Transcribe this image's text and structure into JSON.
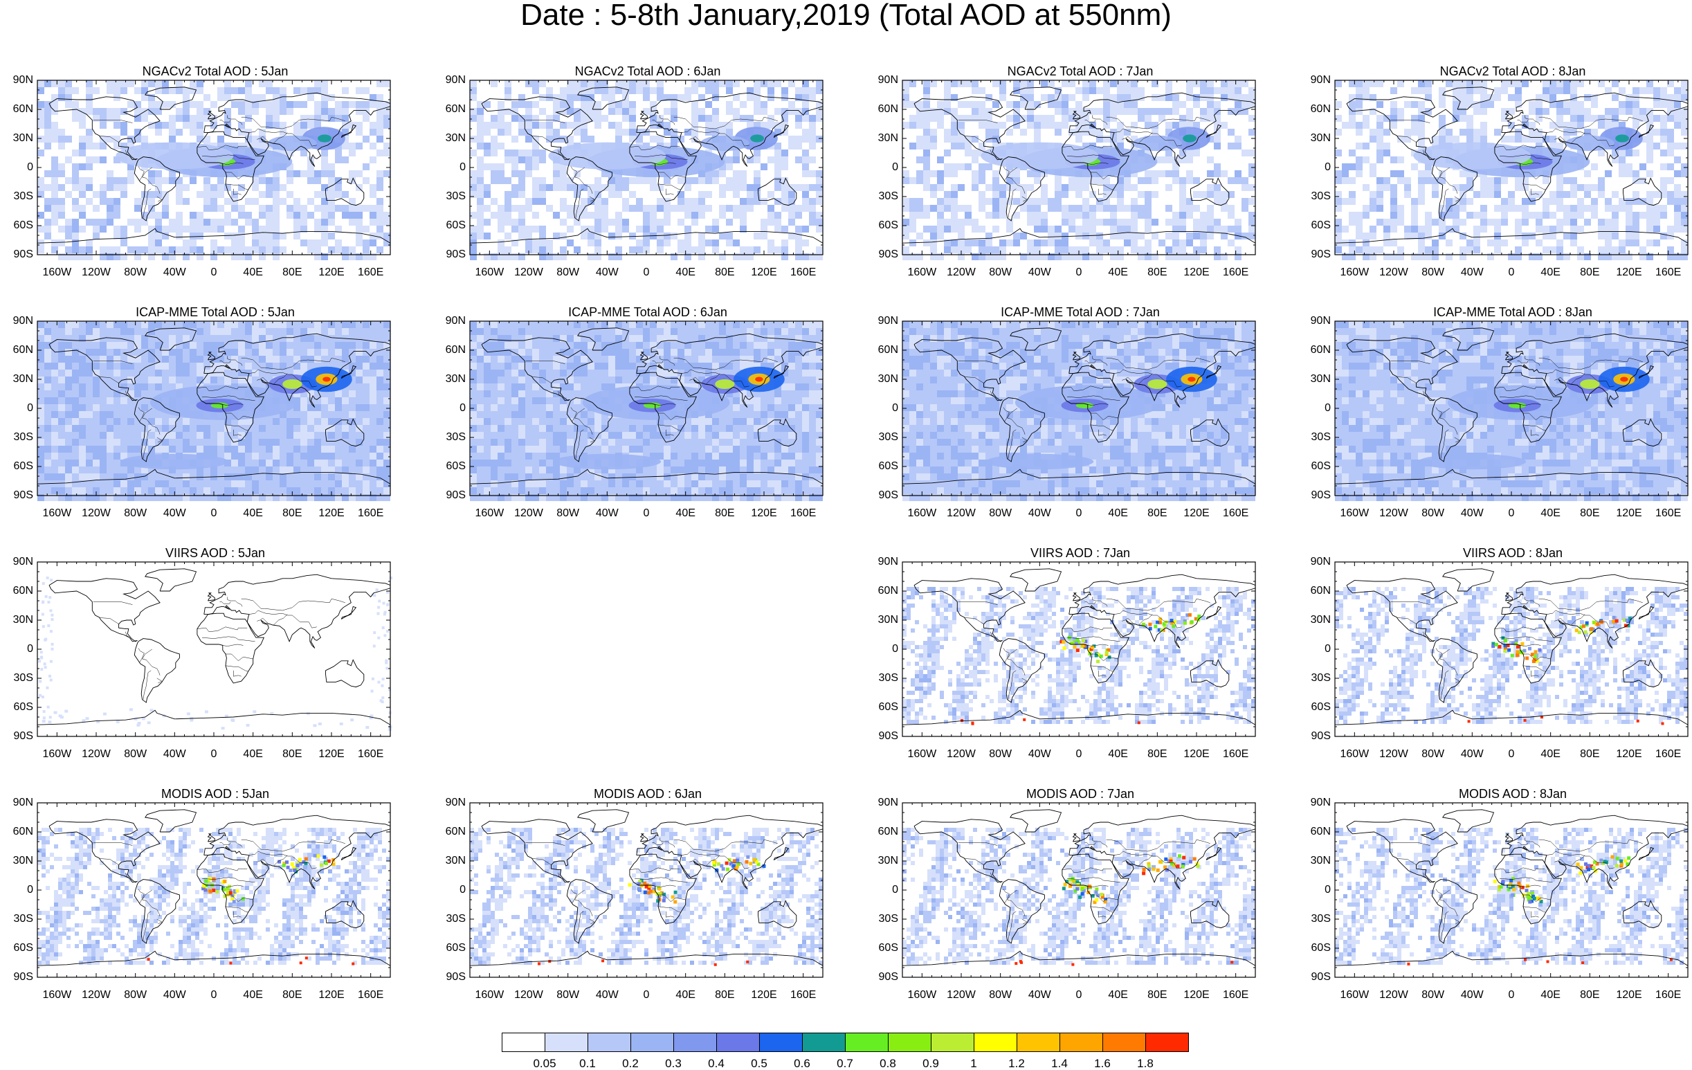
{
  "title": "Date : 5-8th January,2019 (Total AOD at 550nm)",
  "lat_ticks": [
    "90N",
    "60N",
    "30N",
    "0",
    "30S",
    "60S",
    "90S"
  ],
  "lon_ticks": [
    "160W",
    "120W",
    "80W",
    "40W",
    "0",
    "40E",
    "80E",
    "120E",
    "160E"
  ],
  "panels": [
    {
      "row": 0,
      "col": 0,
      "title": "NGACv2 Total AOD : 5Jan",
      "kind": "model"
    },
    {
      "row": 0,
      "col": 1,
      "title": "NGACv2 Total AOD : 6Jan",
      "kind": "model"
    },
    {
      "row": 0,
      "col": 2,
      "title": "NGACv2 Total AOD : 7Jan",
      "kind": "model"
    },
    {
      "row": 0,
      "col": 3,
      "title": "NGACv2 Total AOD : 8Jan",
      "kind": "model"
    },
    {
      "row": 1,
      "col": 0,
      "title": "ICAP-MME Total AOD : 5Jan",
      "kind": "ensemble"
    },
    {
      "row": 1,
      "col": 1,
      "title": "ICAP-MME Total AOD : 6Jan",
      "kind": "ensemble"
    },
    {
      "row": 1,
      "col": 2,
      "title": "ICAP-MME Total AOD : 7Jan",
      "kind": "ensemble"
    },
    {
      "row": 1,
      "col": 3,
      "title": "ICAP-MME Total AOD : 8Jan",
      "kind": "ensemble"
    },
    {
      "row": 2,
      "col": 0,
      "title": "VIIRS AOD : 5Jan",
      "kind": "sparse"
    },
    {
      "row": 2,
      "col": 2,
      "title": "VIIRS AOD : 7Jan",
      "kind": "satellite"
    },
    {
      "row": 2,
      "col": 3,
      "title": "VIIRS AOD : 8Jan",
      "kind": "satellite"
    },
    {
      "row": 3,
      "col": 0,
      "title": "MODIS AOD : 5Jan",
      "kind": "swath"
    },
    {
      "row": 3,
      "col": 1,
      "title": "MODIS AOD : 6Jan",
      "kind": "swath"
    },
    {
      "row": 3,
      "col": 2,
      "title": "MODIS AOD : 7Jan",
      "kind": "swath"
    },
    {
      "row": 3,
      "col": 3,
      "title": "MODIS AOD : 8Jan",
      "kind": "swath"
    }
  ],
  "colorbar": {
    "labels": [
      "0.05",
      "0.1",
      "0.2",
      "0.3",
      "0.4",
      "0.5",
      "0.6",
      "0.7",
      "0.8",
      "0.9",
      "1",
      "1.2",
      "1.4",
      "1.6",
      "1.8"
    ],
    "colors": [
      "#ffffff",
      "#d6e0fb",
      "#b6c8f8",
      "#9bb4f4",
      "#8099ee",
      "#6a78e8",
      "#1c65ee",
      "#129b93",
      "#66ee22",
      "#88ee11",
      "#bbee33",
      "#ffff00",
      "#ffc300",
      "#ffa500",
      "#ff7a00",
      "#ff2a00"
    ]
  }
}
